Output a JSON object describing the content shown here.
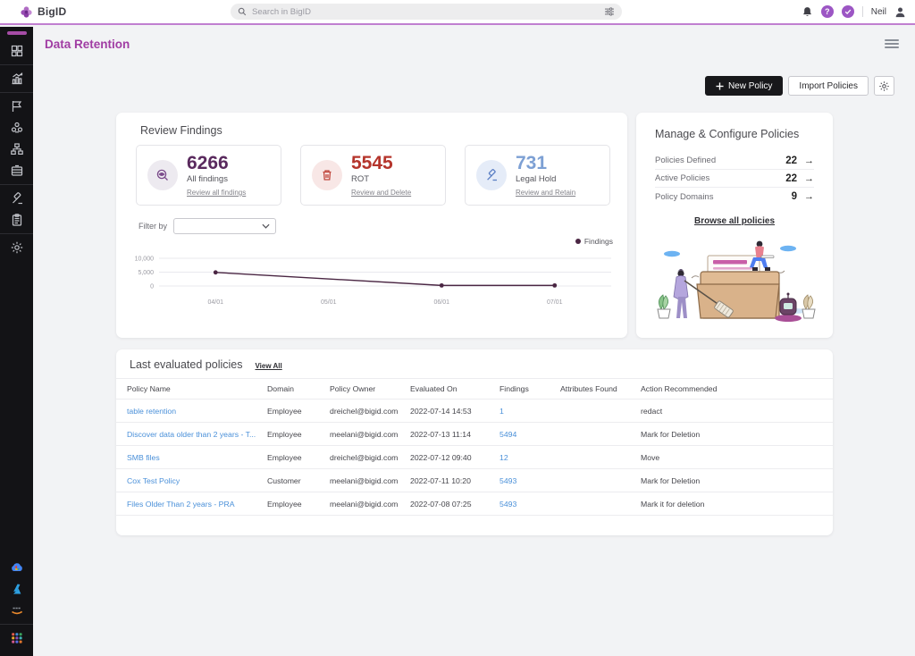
{
  "topbar": {
    "brand": "BigID",
    "search_placeholder": "Search in BigID",
    "user_name": "Neil"
  },
  "page": {
    "title": "Data Retention"
  },
  "toolbar": {
    "new_policy_label": "New Policy",
    "import_policies_label": "Import Policies"
  },
  "sidebar": {
    "groups": [
      [
        "dashboard-icon"
      ],
      [
        "reports-icon"
      ],
      [
        "flag-icon",
        "users-icon",
        "orgchart-icon",
        "archive-icon"
      ],
      [
        "gavel-icon",
        "clipboard-icon"
      ],
      [
        "settings-icon"
      ]
    ],
    "bottom_icons": [
      "gcp-icon",
      "azure-icon",
      "aws-icon"
    ],
    "apps_icon": "apps-grid-icon"
  },
  "review_findings": {
    "title": "Review Findings",
    "filter_label": "Filter by",
    "stats": [
      {
        "icon": "preview-icon",
        "value": "6266",
        "label": "All findings",
        "link": "Review all findings",
        "value_color": "#5a2a5e",
        "icon_color": "#7a4a8a",
        "circle_bg": "#edeaf0"
      },
      {
        "icon": "trash-icon",
        "value": "5545",
        "label": "ROT",
        "link": "Review and Delete",
        "value_color": "#b5352c",
        "icon_color": "#c0473d",
        "circle_bg": "#f8e7e6"
      },
      {
        "icon": "gavel-icon",
        "value": "731",
        "label": "Legal Hold",
        "link": "Review and Retain",
        "value_color": "#7da0d4",
        "icon_color": "#5b7fc4",
        "circle_bg": "#e5ecf8"
      }
    ]
  },
  "chart_data": {
    "type": "line",
    "title": "",
    "x_ticks": [
      "04/01",
      "05/01",
      "06/01",
      "07/01"
    ],
    "y_ticks": [
      0,
      5000,
      10000
    ],
    "y_tick_labels": [
      "0",
      "5,000",
      "10,000"
    ],
    "ylim": [
      0,
      10000
    ],
    "grid": true,
    "legend_position": "top-right",
    "series": [
      {
        "name": "Findings",
        "color": "#4a2643",
        "points": [
          {
            "x": "04/01",
            "y": 4900
          },
          {
            "x": "06/01",
            "y": 200
          },
          {
            "x": "07/01",
            "y": 200
          }
        ]
      }
    ]
  },
  "manage": {
    "title": "Manage & Configure Policies",
    "rows": [
      {
        "label": "Policies Defined",
        "value": "22"
      },
      {
        "label": "Active Policies",
        "value": "22"
      },
      {
        "label": "Policy Domains",
        "value": "9"
      }
    ],
    "arrow": "→",
    "link": "Browse all policies"
  },
  "table": {
    "title": "Last evaluated policies",
    "view_all": "View All",
    "columns": [
      "Policy Name",
      "Domain",
      "Policy Owner",
      "Evaluated On",
      "Findings",
      "Attributes Found",
      "Action Recommended"
    ],
    "rows": [
      {
        "name": "table retention",
        "domain": "Employee",
        "owner": "dreichel@bigid.com",
        "evaluated": "2022-07-14 14:53",
        "findings": "1",
        "attributes": "",
        "action": "redact"
      },
      {
        "name": "Discover data older than 2 years - T...",
        "domain": "Employee",
        "owner": "meelani@bigid.com",
        "evaluated": "2022-07-13 11:14",
        "findings": "5494",
        "attributes": "",
        "action": "Mark for Deletion"
      },
      {
        "name": "SMB files",
        "domain": "Employee",
        "owner": "dreichel@bigid.com",
        "evaluated": "2022-07-12 09:40",
        "findings": "12",
        "attributes": "",
        "action": "Move"
      },
      {
        "name": "Cox Test Policy",
        "domain": "Customer",
        "owner": "meelani@bigid.com",
        "evaluated": "2022-07-11 10:20",
        "findings": "5493",
        "attributes": "",
        "action": "Mark for Deletion"
      },
      {
        "name": "Files Older Than 2 years - PRA",
        "domain": "Employee",
        "owner": "meelani@bigid.com",
        "evaluated": "2022-07-08 07:25",
        "findings": "5493",
        "attributes": "",
        "action": "Mark it for deletion"
      }
    ]
  },
  "colors": {
    "brand_purple": "#a03ca3",
    "topbar_underline": "#c07fd0",
    "link_blue": "#4a90d9",
    "sidebar_bg": "#131316"
  }
}
